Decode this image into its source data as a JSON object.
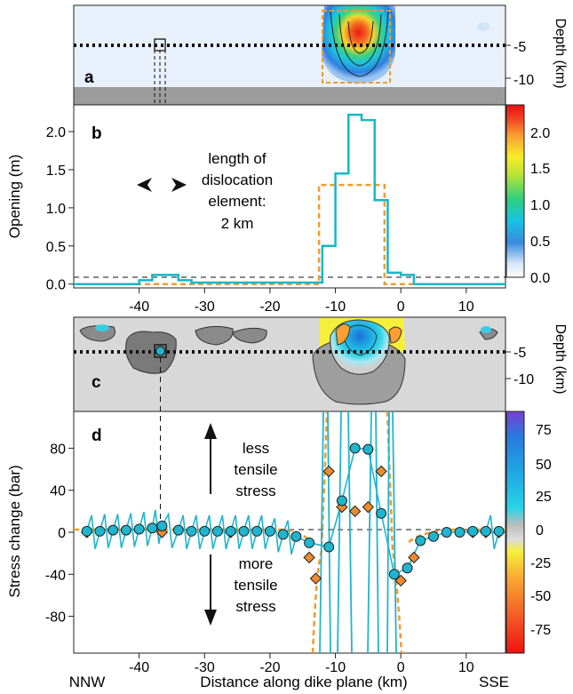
{
  "chart_data": [
    {
      "panel": "a",
      "type": "heatmap",
      "ylabel": "Depth (km)",
      "yticks": [
        -5,
        -10
      ],
      "x_range_km": [
        -50,
        16
      ],
      "depth_range_km": [
        0,
        -15
      ],
      "observation_depth_km": -4.5,
      "dike_bottom_depth_km": -10.5,
      "marked_element_x_km": -36.5,
      "description_values": {
        "max_opening_m": 2.2,
        "opening_zone_x_km": [
          -12,
          -2
        ]
      }
    },
    {
      "panel": "b",
      "type": "line",
      "ylabel": "Opening (m)",
      "ylim": [
        -0.05,
        2.35
      ],
      "yticks": [
        0.0,
        0.5,
        1.0,
        1.5,
        2.0
      ],
      "annotation": [
        "length of",
        "dislocation",
        "element:",
        "2 km"
      ],
      "series": [
        {
          "color": "#14b8c8",
          "x": [
            -50,
            -42,
            -40,
            -38,
            -36,
            -34,
            -32,
            -30,
            -28,
            -26,
            -24,
            -22,
            -20,
            -18,
            -16,
            -14,
            -12,
            -10,
            -8,
            -6,
            -4,
            -2,
            0,
            2,
            16
          ],
          "y": [
            0.0,
            0.0,
            0.05,
            0.12,
            0.12,
            0.05,
            0.02,
            0.02,
            0.02,
            0.02,
            0.02,
            0.02,
            0.02,
            0.02,
            0.02,
            0.02,
            0.5,
            1.45,
            2.22,
            2.15,
            1.1,
            0.15,
            0.12,
            0.0,
            0.0
          ]
        },
        {
          "color": "#f29a2e",
          "x": [
            -50,
            -12.5,
            -12.5,
            -2.5,
            -2.5,
            16
          ],
          "y": [
            0.0,
            0.0,
            1.3,
            1.3,
            0.0,
            0.0
          ]
        }
      ]
    },
    {
      "panel": "c",
      "type": "heatmap",
      "ylabel": "Depth (km)",
      "yticks": [
        -5,
        -10
      ],
      "observation_depth_km": -4.5,
      "marked_element_x_km": -36.5
    },
    {
      "panel": "d",
      "type": "scatter",
      "xlabel": "Distance along dike plane (km)",
      "ylabel": "Stress change (bar)",
      "xlim": [
        -50,
        16
      ],
      "ylim": [
        -115,
        115
      ],
      "xticks": [
        -40,
        -30,
        -20,
        -10,
        0,
        10
      ],
      "yticks": [
        80,
        40,
        0,
        -40,
        -80
      ],
      "annotation_up": [
        "less",
        "tensile",
        "stress"
      ],
      "annotation_down": [
        "more",
        "tensile",
        "stress"
      ],
      "series": [
        {
          "marker": "circle",
          "color": "#1fb5cf",
          "x": [
            -48,
            -46,
            -44,
            -42,
            -40,
            -38,
            -36.5,
            -34,
            -32,
            -30,
            -28,
            -26,
            -24,
            -22,
            -20,
            -18,
            -16,
            -14,
            -11,
            -9,
            -7,
            -5,
            -3,
            -1,
            1,
            3,
            5,
            7,
            9,
            11,
            13,
            15
          ],
          "y": [
            1,
            1,
            2,
            2,
            3,
            4,
            6,
            2,
            1,
            1,
            1,
            1,
            1,
            1,
            1,
            -2,
            -4,
            -10,
            -14,
            30,
            80,
            79,
            18,
            -40,
            -34,
            -8,
            -4,
            0,
            0,
            1,
            1,
            1
          ]
        },
        {
          "marker": "diamond",
          "color": "#ef8a2c",
          "x": [
            -48,
            -36.5,
            -26,
            -14,
            -13,
            -11,
            -9,
            -7,
            -5,
            -3,
            0,
            2,
            11,
            13,
            15
          ],
          "y": [
            0,
            0,
            0,
            -24,
            -44,
            58,
            24,
            20,
            24,
            58,
            -46,
            -24,
            0,
            0,
            0
          ]
        }
      ]
    }
  ],
  "panel_labels": {
    "a": "a",
    "b": "b",
    "c": "c",
    "d": "d"
  },
  "colorbar_opening": {
    "ticks": [
      "2.0",
      "1.5",
      "1.0",
      "0.5",
      "0.0"
    ],
    "colors": [
      "#ffffff",
      "#cfe3f7",
      "#3c8fe0",
      "#19c9e0",
      "#30d27e",
      "#c8e632",
      "#f7ee2a",
      "#f8a032",
      "#f04322",
      "#ee1111"
    ]
  },
  "colorbar_stress": {
    "ticks": [
      "75",
      "50",
      "25",
      "0",
      "-25",
      "-50",
      "-75"
    ],
    "colors": [
      "#6a3fd6",
      "#1d8fe0",
      "#21bde8",
      "#bfbfbf",
      "#f6ee37",
      "#f8a030",
      "#ee1c1c"
    ]
  },
  "x_tick_labels": [
    "-40",
    "-30",
    "-20",
    "-10",
    "0",
    "10"
  ],
  "b_tick_labels": [
    "0.0",
    "0.5",
    "1.0",
    "1.5",
    "2.0"
  ],
  "d_tick_labels": [
    "80",
    "40",
    "0",
    "-40",
    "-80"
  ],
  "depth_tick_labels": [
    "-5",
    "-10"
  ],
  "label_depth": "Depth (km)",
  "label_opening": "Opening (m)",
  "label_stress": "Stress change (bar)",
  "label_distance": "Distance along dike plane (km)",
  "label_nnw": "NNW",
  "label_sse": "SSE",
  "note_length": [
    "length of",
    "dislocation",
    "element:",
    "2 km"
  ],
  "note_less": [
    "less",
    "tensile",
    "stress"
  ],
  "note_more": [
    "more",
    "tensile",
    "stress"
  ]
}
